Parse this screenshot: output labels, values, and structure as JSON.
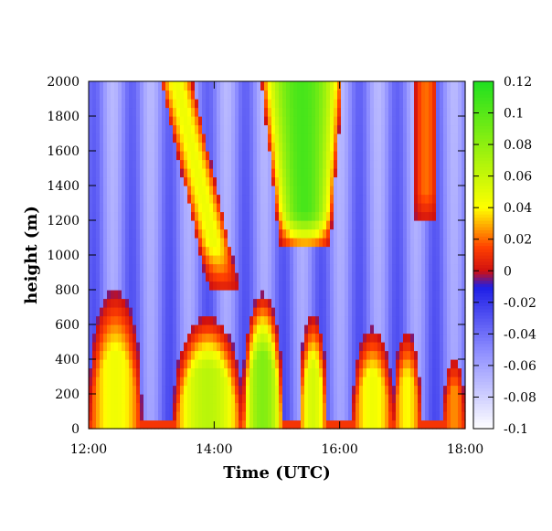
{
  "chart_data": {
    "type": "heatmap",
    "title": "",
    "xlabel": "Time (UTC)",
    "ylabel": "height (m)",
    "x_tick_labels": [
      "12:00",
      "14:00",
      "16:00",
      "18:00"
    ],
    "x_range_hours": [
      12,
      18
    ],
    "x_tick_hours": [
      12,
      14,
      16,
      18
    ],
    "ylim": [
      0,
      2000
    ],
    "y_ticks": [
      0,
      200,
      400,
      600,
      800,
      1000,
      1200,
      1400,
      1600,
      1800,
      2000
    ],
    "colorbar": {
      "range": [
        -0.1,
        0.12
      ],
      "ticks": [
        -0.1,
        -0.08,
        -0.06,
        -0.04,
        -0.02,
        0,
        0.02,
        0.04,
        0.06,
        0.08,
        0.1,
        0.12
      ],
      "colors": [
        {
          "value": -0.1,
          "color": "#ffffff"
        },
        {
          "value": -0.05,
          "color": "#8c8cff"
        },
        {
          "value": -0.01,
          "color": "#1e1ee6"
        },
        {
          "value": 0,
          "color": "#d01010"
        },
        {
          "value": 0.015,
          "color": "#ff4000"
        },
        {
          "value": 0.04,
          "color": "#ffff00"
        },
        {
          "value": 0.12,
          "color": "#20e020"
        }
      ]
    },
    "grid": false,
    "legend": "colorbar-right",
    "features": [
      {
        "name": "boundary-layer-thermal-1",
        "t_start": 12.0,
        "t_end": 12.85,
        "height_top": 800,
        "value_max": 0.05
      },
      {
        "name": "boundary-layer-thermal-2",
        "t_start": 13.35,
        "t_end": 14.45,
        "height_top": 650,
        "value_max": 0.07
      },
      {
        "name": "boundary-layer-thermal-3",
        "t_start": 14.45,
        "t_end": 15.1,
        "height_top": 780,
        "value_max": 0.09
      },
      {
        "name": "boundary-layer-thermal-4",
        "t_start": 15.35,
        "t_end": 15.8,
        "height_top": 660,
        "value_max": 0.06
      },
      {
        "name": "boundary-layer-thermal-5",
        "t_start": 16.2,
        "t_end": 16.85,
        "height_top": 580,
        "value_max": 0.05
      },
      {
        "name": "boundary-layer-thermal-6",
        "t_start": 16.85,
        "t_end": 17.3,
        "height_top": 560,
        "value_max": 0.045
      },
      {
        "name": "boundary-layer-thermal-7",
        "t_start": 17.65,
        "t_end": 18.0,
        "height_top": 420,
        "value_max": 0.03
      },
      {
        "name": "upper-plume-diagonal",
        "t_start": 13.5,
        "t_end": 14.6,
        "height_top": 2000,
        "height_bottom": 820,
        "value_max": 0.05
      },
      {
        "name": "upper-plume-green",
        "t_start": 14.75,
        "t_end": 16.05,
        "height_top": 2000,
        "height_bottom": 1050,
        "value_max": 0.11
      },
      {
        "name": "upper-plume-right",
        "t_start": 17.2,
        "t_end": 17.55,
        "height_top": 2000,
        "height_bottom": 1200,
        "value_max": 0.025
      }
    ]
  }
}
